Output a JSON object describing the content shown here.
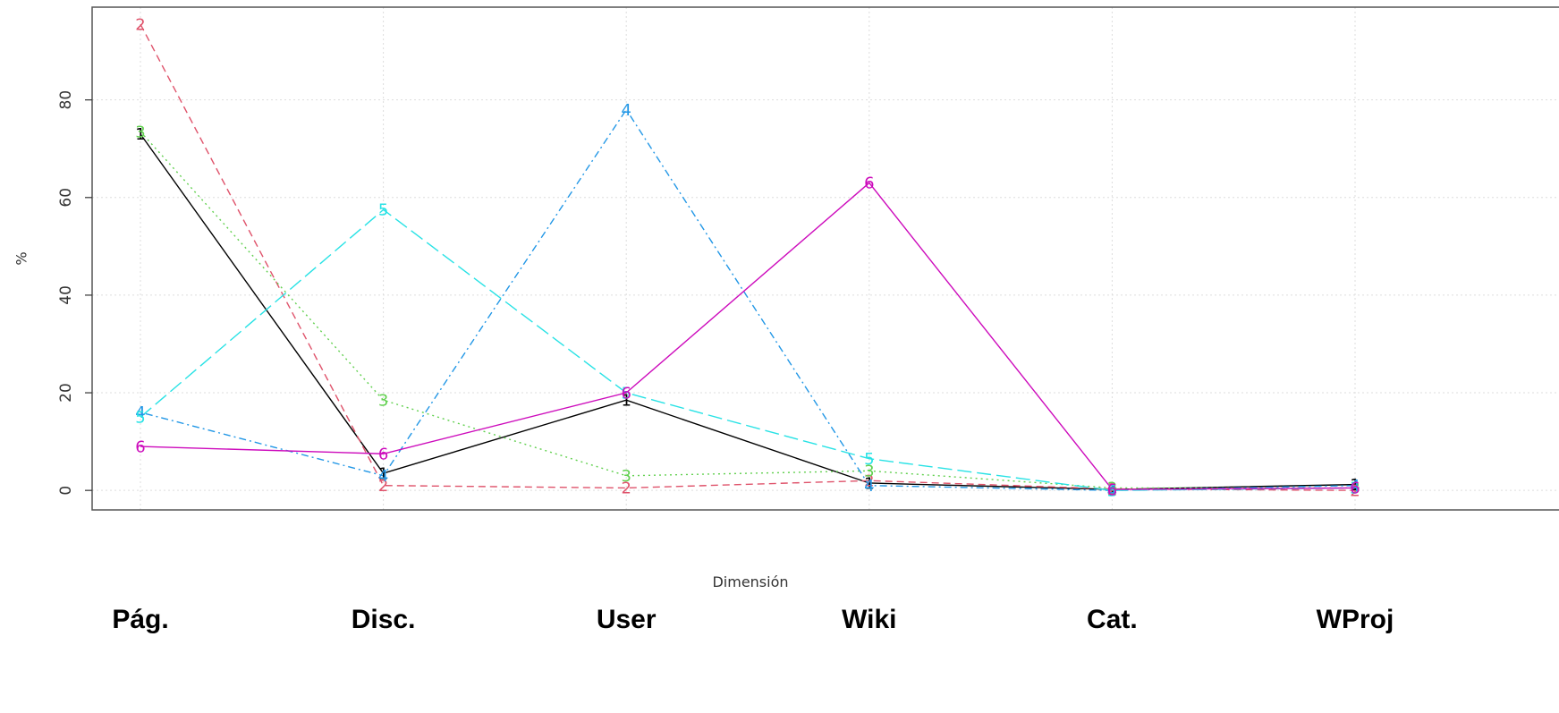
{
  "chart_data": {
    "type": "line",
    "title": "",
    "xlabel": "Dimensión",
    "ylabel": "%",
    "categories": [
      "Pág.",
      "Disc.",
      "User",
      "Wiki",
      "Cat.",
      "WProj"
    ],
    "ylim": [
      -4,
      99
    ],
    "yticks": [
      0,
      20,
      40,
      60,
      80
    ],
    "grid": true,
    "legend": "none",
    "series": [
      {
        "label": "1",
        "color": "#000000",
        "dash": "solid",
        "values": [
          73,
          3.5,
          18.5,
          1.5,
          0.2,
          1.2
        ]
      },
      {
        "label": "2",
        "color": "#DF536B",
        "dash": "dashed",
        "values": [
          95.5,
          1,
          0.5,
          2,
          0.3,
          0
        ]
      },
      {
        "label": "3",
        "color": "#61D04F",
        "dash": "dotted",
        "values": [
          73.5,
          18.5,
          3,
          4,
          0.5,
          0.5
        ]
      },
      {
        "label": "4",
        "color": "#2297E6",
        "dash": "dotdash",
        "values": [
          16,
          3,
          78,
          1,
          0,
          1
        ]
      },
      {
        "label": "5",
        "color": "#28E2E5",
        "dash": "longdash",
        "values": [
          15,
          57.5,
          20,
          6.5,
          0,
          0.5
        ]
      },
      {
        "label": "6",
        "color": "#CD0BBC",
        "dash": "solid",
        "values": [
          9,
          7.5,
          20,
          63,
          0.2,
          0.5
        ]
      }
    ]
  }
}
